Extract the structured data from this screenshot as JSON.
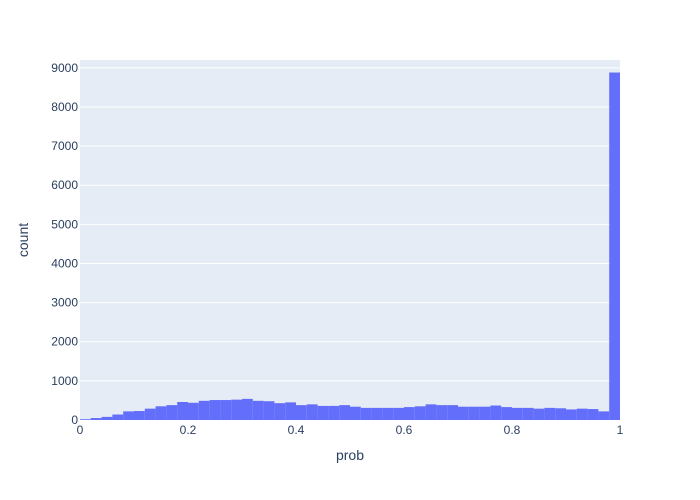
{
  "chart_data": {
    "type": "bar",
    "title": "",
    "xlabel": "prob",
    "ylabel": "count",
    "xlim": [
      0,
      1
    ],
    "ylim": [
      0,
      9200
    ],
    "x_ticks": [
      0,
      0.2,
      0.4,
      0.6,
      0.8,
      1
    ],
    "x_tick_labels": [
      "0",
      "0.2",
      "0.4",
      "0.6",
      "0.8",
      "1"
    ],
    "y_ticks": [
      0,
      1000,
      2000,
      3000,
      4000,
      5000,
      6000,
      7000,
      8000,
      9000
    ],
    "y_tick_labels": [
      "0",
      "1000",
      "2000",
      "3000",
      "4000",
      "5000",
      "6000",
      "7000",
      "8000",
      "9000"
    ],
    "grid": true,
    "bin_width": 0.02,
    "bin_starts": [
      0,
      0.02,
      0.04,
      0.06,
      0.08,
      0.1,
      0.12,
      0.14,
      0.16,
      0.18,
      0.2,
      0.22,
      0.24,
      0.26,
      0.28,
      0.3,
      0.32,
      0.34,
      0.36,
      0.38,
      0.4,
      0.42,
      0.44,
      0.46,
      0.48,
      0.5,
      0.52,
      0.54,
      0.56,
      0.58,
      0.6,
      0.62,
      0.64,
      0.66,
      0.68,
      0.7,
      0.72,
      0.74,
      0.76,
      0.78,
      0.8,
      0.82,
      0.84,
      0.86,
      0.88,
      0.9,
      0.92,
      0.94,
      0.96,
      0.98
    ],
    "values": [
      20,
      50,
      80,
      140,
      220,
      230,
      290,
      350,
      380,
      460,
      440,
      490,
      510,
      510,
      520,
      540,
      490,
      480,
      430,
      450,
      380,
      400,
      360,
      360,
      380,
      340,
      310,
      310,
      310,
      310,
      330,
      350,
      400,
      380,
      380,
      340,
      340,
      340,
      370,
      330,
      310,
      310,
      290,
      310,
      300,
      270,
      290,
      280,
      220,
      8880
    ],
    "colors": {
      "bar": "#636efa",
      "plot_bg": "#e5ecf6",
      "grid": "#ffffff",
      "text": "#2a3f5f"
    }
  }
}
